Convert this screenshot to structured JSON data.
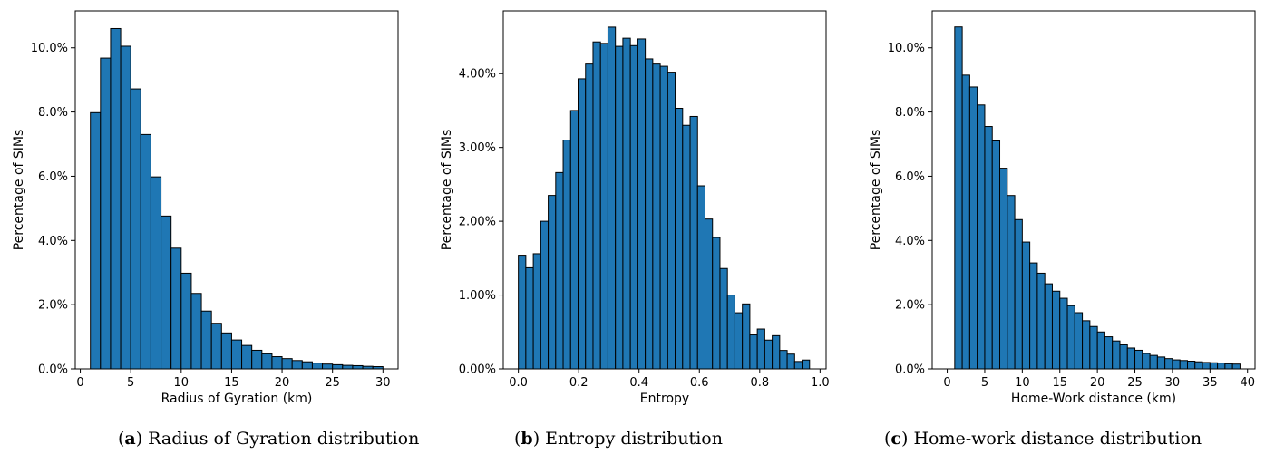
{
  "colors": {
    "bar_fill": "#1f77b4",
    "bar_edge": "#000000"
  },
  "chart_data": [
    {
      "type": "bar",
      "xlabel": "Radius of Gyration (km)",
      "ylabel": "Percentage of SIMs",
      "caption_letter": "a",
      "caption_text": ") Radius of Gyration distribution",
      "xlim": [
        -0.5,
        31.5
      ],
      "ylim": [
        0,
        11.15
      ],
      "xticks": [
        0,
        5,
        10,
        15,
        20,
        25,
        30
      ],
      "xtick_labels": [
        "0",
        "5",
        "10",
        "15",
        "20",
        "25",
        "30"
      ],
      "yticks": [
        0,
        2,
        4,
        6,
        8,
        10
      ],
      "ytick_labels": [
        "0.0%",
        "2.0%",
        "4.0%",
        "6.0%",
        "8.0%",
        "10.0%"
      ],
      "bin_start": 1.0,
      "bin_width": 1.0,
      "values": [
        7.98,
        9.68,
        10.6,
        10.05,
        8.72,
        7.3,
        5.98,
        4.76,
        3.76,
        2.98,
        2.35,
        1.8,
        1.42,
        1.12,
        0.9,
        0.73,
        0.58,
        0.47,
        0.38,
        0.32,
        0.26,
        0.22,
        0.18,
        0.15,
        0.13,
        0.11,
        0.1,
        0.08,
        0.07
      ]
    },
    {
      "type": "bar",
      "xlabel": "Entropy",
      "ylabel": "Percentage of SIMs",
      "caption_letter": "b",
      "caption_text": ") Entropy distribution",
      "xlim": [
        -0.05,
        1.02
      ],
      "ylim": [
        0,
        4.85
      ],
      "xticks": [
        0.0,
        0.2,
        0.4,
        0.6,
        0.8,
        1.0
      ],
      "xtick_labels": [
        "0.0",
        "0.2",
        "0.4",
        "0.6",
        "0.8",
        "1.0"
      ],
      "yticks": [
        0,
        1,
        2,
        3,
        4
      ],
      "ytick_labels": [
        "0.00%",
        "1.00%",
        "2.00%",
        "3.00%",
        "4.00%"
      ],
      "bin_start": 0.0,
      "bin_width": 0.02475,
      "values": [
        1.54,
        1.37,
        1.56,
        2.0,
        2.35,
        2.66,
        3.1,
        3.5,
        3.93,
        4.13,
        4.43,
        4.41,
        4.63,
        4.37,
        4.48,
        4.38,
        4.47,
        4.2,
        4.13,
        4.1,
        4.02,
        3.53,
        3.3,
        3.42,
        2.48,
        2.03,
        1.78,
        1.36,
        1.0,
        0.76,
        0.88,
        0.46,
        0.54,
        0.39,
        0.45,
        0.25,
        0.2,
        0.1,
        0.12
      ]
    },
    {
      "type": "bar",
      "xlabel": "Home-Work distance (km)",
      "ylabel": "Percentage of SIMs",
      "caption_letter": "c",
      "caption_text": ") Home-work distance distribution",
      "xlim": [
        -2.0,
        41.0
      ],
      "ylim": [
        0,
        11.15
      ],
      "xticks": [
        0,
        5,
        10,
        15,
        20,
        25,
        30,
        35,
        40
      ],
      "xtick_labels": [
        "0",
        "5",
        "10",
        "15",
        "20",
        "25",
        "30",
        "35",
        "40"
      ],
      "yticks": [
        0,
        2,
        4,
        6,
        8,
        10
      ],
      "ytick_labels": [
        "0.0%",
        "2.0%",
        "4.0%",
        "6.0%",
        "8.0%",
        "10.0%"
      ],
      "bin_start": 1.0,
      "bin_width": 1.0,
      "values": [
        10.65,
        9.15,
        8.78,
        8.22,
        7.55,
        7.1,
        6.25,
        5.4,
        4.65,
        3.95,
        3.3,
        2.98,
        2.65,
        2.42,
        2.2,
        1.97,
        1.75,
        1.5,
        1.32,
        1.15,
        1.0,
        0.87,
        0.75,
        0.65,
        0.58,
        0.48,
        0.42,
        0.37,
        0.32,
        0.28,
        0.26,
        0.24,
        0.22,
        0.2,
        0.19,
        0.18,
        0.16,
        0.15
      ]
    }
  ]
}
